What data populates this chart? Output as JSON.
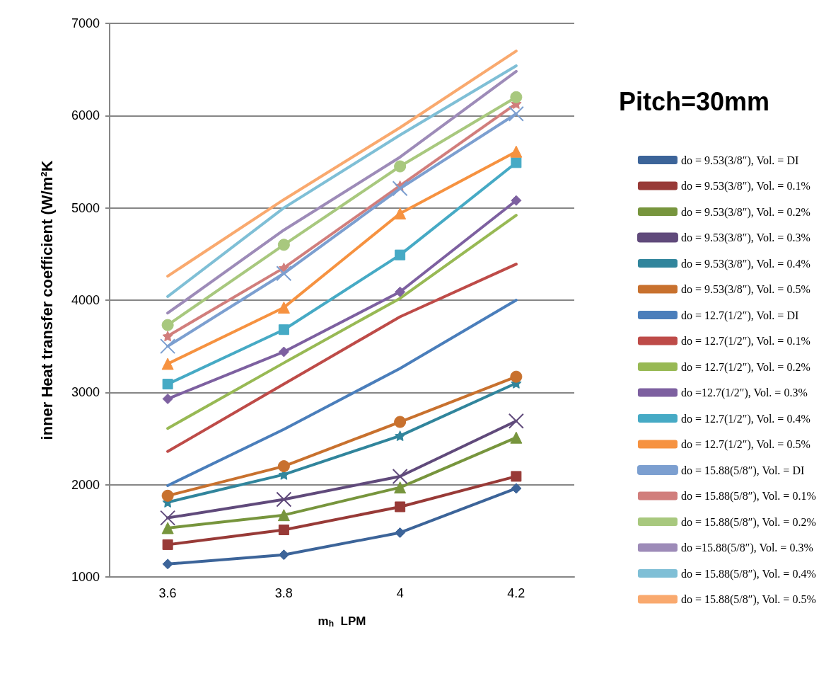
{
  "chart_data": {
    "type": "line",
    "title": "Pitch=30mm",
    "xlabel": "m$_{h}$  LPM",
    "ylabel": "inner Heat transfer coefficient (W/m²K",
    "categories": [
      "3.6",
      "3.8",
      "4",
      "4.2"
    ],
    "ylim": [
      1000,
      7000
    ],
    "yticks": [
      1000,
      2000,
      3000,
      4000,
      5000,
      6000,
      7000
    ],
    "grid": "y",
    "legend": "right",
    "line_style": "solid",
    "series": [
      {
        "name": "do = 9.53(3/8″), Vol. = DI",
        "color": "#3c6499",
        "marker": "diamond",
        "values": [
          1140,
          1240,
          1480,
          1960
        ]
      },
      {
        "name": "do = 9.53(3/8″), Vol. = 0.1%",
        "color": "#983a37",
        "marker": "square",
        "values": [
          1350,
          1510,
          1760,
          2090
        ]
      },
      {
        "name": "do = 9.53(3/8″), Vol. = 0.2%",
        "color": "#77953d",
        "marker": "triangle",
        "values": [
          1530,
          1670,
          1970,
          2510
        ]
      },
      {
        "name": "do = 9.53(3/8″), Vol. = 0.3%",
        "color": "#604a7b",
        "marker": "cross",
        "values": [
          1640,
          1840,
          2090,
          2690
        ]
      },
      {
        "name": "do = 9.53(3/8″), Vol. = 0.4%",
        "color": "#31859c",
        "marker": "star",
        "values": [
          1810,
          2110,
          2530,
          3100
        ]
      },
      {
        "name": "do = 9.53(3/8″), Vol. = 0.5%",
        "color": "#c8712e",
        "marker": "circle",
        "values": [
          1880,
          2200,
          2680,
          3170
        ]
      },
      {
        "name": "do = 12.7(1/2″), Vol. = DI",
        "color": "#4a7ebb",
        "marker": "none",
        "values": [
          1990,
          2600,
          3260,
          4000
        ]
      },
      {
        "name": "do = 12.7(1/2″), Vol. = 0.1%",
        "color": "#be4b48",
        "marker": "none",
        "values": [
          2360,
          3090,
          3820,
          4390
        ]
      },
      {
        "name": "do = 12.7(1/2″), Vol. = 0.2%",
        "color": "#98b954",
        "marker": "none",
        "values": [
          2610,
          3320,
          4020,
          4920
        ]
      },
      {
        "name": "do =12.7(1/2″), Vol. = 0.3%",
        "color": "#7d60a0",
        "marker": "diamond",
        "values": [
          2930,
          3440,
          4090,
          5080
        ]
      },
      {
        "name": "do = 12.7(1/2″), Vol. = 0.4%",
        "color": "#46aac5",
        "marker": "square",
        "values": [
          3090,
          3680,
          4490,
          5490
        ]
      },
      {
        "name": "do = 12.7(1/2″), Vol. = 0.5%",
        "color": "#f69240",
        "marker": "triangle",
        "values": [
          3310,
          3920,
          4940,
          5610
        ]
      },
      {
        "name": "do = 15.88(5/8″), Vol. = DI",
        "color": "#7c9fd0",
        "marker": "cross",
        "values": [
          3500,
          4290,
          5210,
          6020
        ]
      },
      {
        "name": "do = 15.88(5/8″), Vol. = 0.1%",
        "color": "#d17e7c",
        "marker": "star",
        "values": [
          3610,
          4350,
          5240,
          6130
        ]
      },
      {
        "name": "do = 15.88(5/8″), Vol. = 0.2%",
        "color": "#a8c87e",
        "marker": "circle",
        "values": [
          3730,
          4600,
          5450,
          6200
        ]
      },
      {
        "name": "do =15.88(5/8″), Vol. = 0.3%",
        "color": "#9d8bb8",
        "marker": "none",
        "values": [
          3860,
          4760,
          5550,
          6480
        ]
      },
      {
        "name": "do = 15.88(5/8″), Vol. = 0.4%",
        "color": "#7fbfd6",
        "marker": "none",
        "values": [
          4040,
          5000,
          5790,
          6540
        ]
      },
      {
        "name": "do = 15.88(5/8″), Vol. = 0.5%",
        "color": "#f9a96e",
        "marker": "none",
        "values": [
          4260,
          5090,
          5870,
          6700
        ]
      }
    ]
  }
}
